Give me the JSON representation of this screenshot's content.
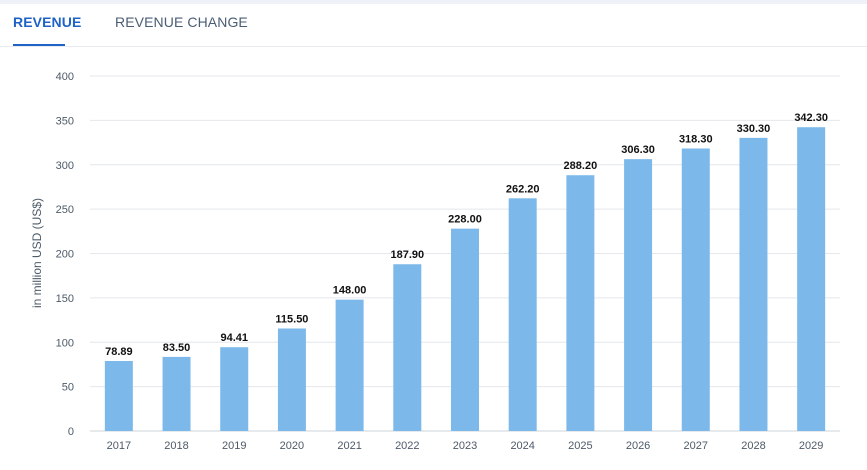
{
  "tabs": [
    {
      "label": "REVENUE",
      "active": true
    },
    {
      "label": "REVENUE CHANGE",
      "active": false
    }
  ],
  "colors": {
    "accent": "#1f63c6",
    "bar": "#7cb9ea",
    "grid": "#e4e7ec"
  },
  "chart_data": {
    "type": "bar",
    "title": "",
    "xlabel": "",
    "ylabel": "in million USD (US$)",
    "ylim": [
      0,
      400
    ],
    "yticks": [
      0,
      50,
      100,
      150,
      200,
      250,
      300,
      350,
      400
    ],
    "grid": true,
    "categories": [
      "2017",
      "2018",
      "2019",
      "2020",
      "2021",
      "2022",
      "2023",
      "2024",
      "2025",
      "2026",
      "2027",
      "2028",
      "2029"
    ],
    "values": [
      78.89,
      83.5,
      94.41,
      115.5,
      148.0,
      187.9,
      228.0,
      262.2,
      288.2,
      306.3,
      318.3,
      330.3,
      342.3
    ],
    "data_labels": [
      "78.89",
      "83.50",
      "94.41",
      "115.50",
      "148.00",
      "187.90",
      "228.00",
      "262.20",
      "288.20",
      "306.30",
      "318.30",
      "330.30",
      "342.30"
    ]
  }
}
